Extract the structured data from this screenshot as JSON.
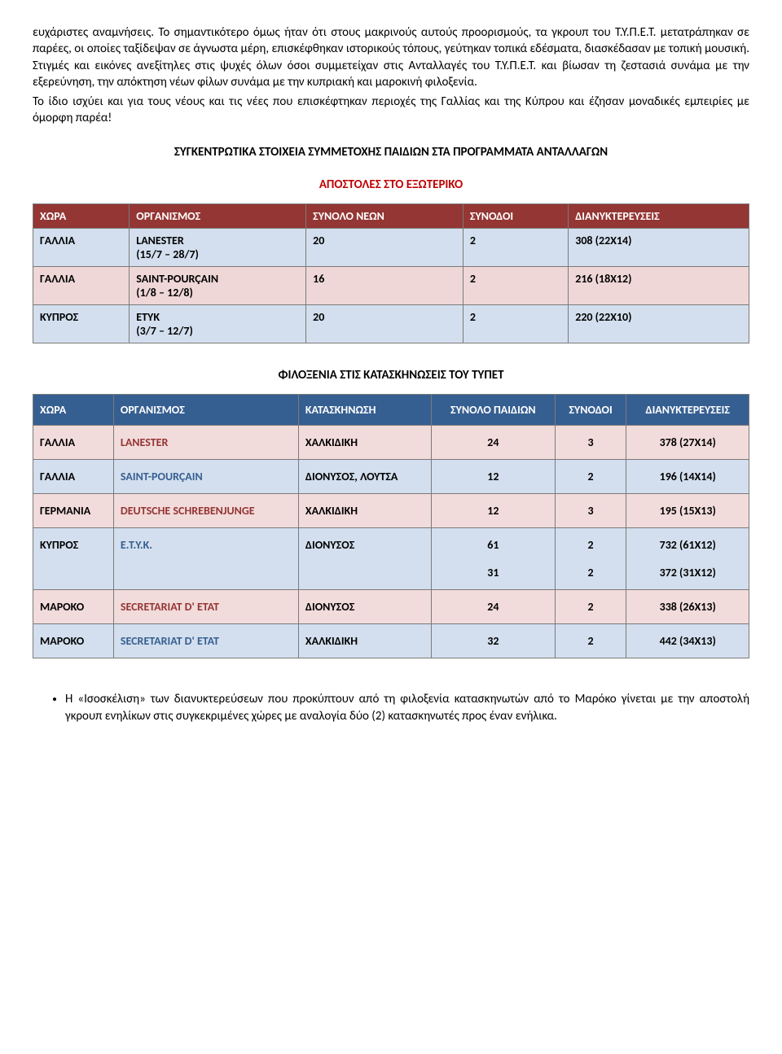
{
  "paragraphs": {
    "p1": "ευχάριστες αναμνήσεις. Το σημαντικότερο όμως ήταν ότι στους μακρινούς αυτούς προορισμούς, τα γκρουπ του Τ.Υ.Π.Ε.Τ. μετατράπηκαν σε παρέες, οι οποίες ταξίδεψαν σε άγνωστα μέρη, επισκέφθηκαν ιστορικούς τόπους, γεύτηκαν τοπικά εδέσματα, διασκέδασαν με τοπική μουσική. Στιγμές και εικόνες ανεξίτηλες στις ψυχές όλων όσοι συμμετείχαν στις Ανταλλαγές του Τ.Υ.Π.Ε.Τ. και βίωσαν τη ζεστασιά συνάμα με την εξερεύνηση, την απόκτηση νέων φίλων συνάμα με την κυπριακή και μαροκινή φιλοξενία.",
    "p2": "Το ίδιο ισχύει και για τους νέους και τις νέες που επισκέφτηκαν περιοχές της Γαλλίας και της Κύπρου και έζησαν μοναδικές εμπειρίες με όμορφη παρέα!"
  },
  "headings": {
    "h1": "ΣΥΓΚΕΝΤΡΩΤΙΚΑ ΣΤΟΙΧΕΙΑ ΣΥΜΜΕΤΟΧΗΣ ΠΑΙΔΙΩΝ ΣΤΑ ΠΡΟΓΡΑΜΜΑΤΑ ΑΝΤΑΛΛΑΓΩΝ",
    "h2": "ΑΠΟΣΤΟΛΕΣ ΣΤΟ ΕΞΩΤΕΡΙΚΟ",
    "h3": "ΦΙΛΟΞΕΝΙΑ ΣΤΙΣ ΚΑΤΑΣΚΗΝΩΣΕΙΣ ΤΟΥ ΤΥΠΕΤ"
  },
  "table1": {
    "columns": [
      "ΧΩΡΑ",
      "ΟΡΓΑΝΙΣΜΟΣ",
      "ΣΥΝΟΛΟ ΝΕΩΝ",
      "ΣΥΝΟΔΟΙ",
      "ΔΙΑΝΥΚΤΕΡΕΥΣΕΙΣ"
    ],
    "rows": [
      {
        "cells": [
          "ΓΑΛΛΙΑ",
          "LANESTER\n(15/7 – 28/7)",
          "20",
          "2",
          "308 (22Χ14)"
        ],
        "style": "blue"
      },
      {
        "cells": [
          "ΓΑΛΛΙΑ",
          "SAINT-POURÇAIN\n(1/8 – 12/8)",
          "16",
          "2",
          "216 (18Χ12)"
        ],
        "style": "pink"
      },
      {
        "cells": [
          "ΚΥΠΡΟΣ",
          "ΕΤΥΚ\n(3/7 – 12/7)",
          "20",
          "2",
          "220 (22Χ10)"
        ],
        "style": "blue"
      }
    ]
  },
  "table2": {
    "columns": [
      "ΧΩΡΑ",
      "ΟΡΓΑΝΙΣΜΟΣ",
      "ΚΑΤΑΣΚΗΝΩΣΗ",
      "ΣΥΝΟΛΟ ΠΑΙΔΙΩΝ",
      "ΣΥΝΟΔΟΙ",
      "ΔΙΑΝΥΚΤΕΡΕΥΣΕΙΣ"
    ],
    "rows": [
      {
        "cells": [
          "ΓΑΛΛΙΑ",
          "LANESTER",
          "ΧΑΛΚΙΔΙΚΗ",
          "24",
          "3",
          "378 (27Χ14)"
        ],
        "style": "pink2"
      },
      {
        "cells": [
          "ΓΑΛΛΙΑ",
          "SAINT-POURÇAIN",
          "ΔΙΟΝΥΣΟΣ, ΛΟΥΤΣΑ",
          "12",
          "2",
          "196 (14Χ14)"
        ],
        "style": "blue2"
      },
      {
        "gap": true
      },
      {
        "cells": [
          "ΓΕΡΜΑΝΙΑ",
          "DEUTSCHE SCHREBENJUNGE",
          "ΧΑΛΚΙΔΙΚΗ",
          "12",
          "3",
          "195 (15Χ13)"
        ],
        "style": "pink2"
      },
      {
        "gap": true
      },
      {
        "cells": [
          "ΚΥΠΡΟΣ",
          "Ε.Τ.Υ.Κ.",
          "ΔΙΟΝΥΣΟΣ",
          "61\n\n31",
          "2\n\n2",
          "732 (61Χ12)\n\n372 (31Χ12)"
        ],
        "style": "blue2"
      },
      {
        "gap": true
      },
      {
        "cells": [
          "ΜΑΡΟΚΟ",
          "SECRETARIAT D' ETAT",
          "ΔΙΟΝΥΣΟΣ",
          "24",
          "2",
          "338 (26Χ13)"
        ],
        "style": "pink2"
      },
      {
        "gap": true
      },
      {
        "cells": [
          "ΜΑΡΟΚΟ",
          "SECRETARIAT D' ETAT",
          "ΧΑΛΚΙΔΙΚΗ",
          "32",
          "2",
          "442 (34Χ13)"
        ],
        "style": "blue2"
      }
    ]
  },
  "bullet": "Η «Ισοσκέλιση» των διανυκτερεύσεων που προκύπτουν από τη φιλοξενία κατασκηνωτών από το Μαρόκο γίνεται με την αποστολή γκρουπ ενηλίκων στις συγκεκριμένες χώρες με αναλογία δύο (2) κατασκηνωτές προς έναν ενήλικα."
}
